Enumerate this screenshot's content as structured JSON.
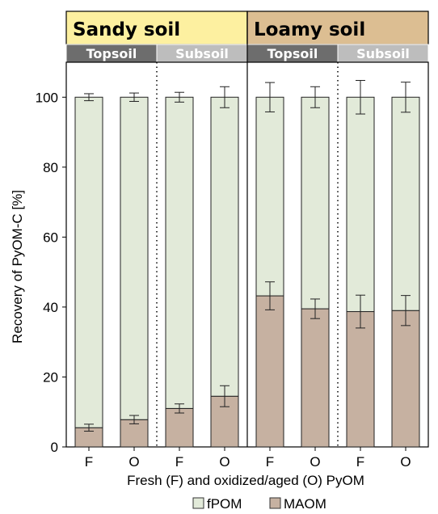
{
  "chart_data": {
    "type": "bar",
    "stacked": true,
    "groups": [
      {
        "soil": "Sandy soil",
        "color": "#fdf0a0",
        "depths": [
          {
            "label": "Topsoil",
            "color": "#6d6d6d",
            "bars": [
              {
                "x": "F",
                "MAOM": 5.5,
                "MAOM_err": 1.0,
                "total_err": 1.0
              },
              {
                "x": "O",
                "MAOM": 7.8,
                "MAOM_err": 1.2,
                "total_err": 1.2
              }
            ]
          },
          {
            "label": "Subsoil",
            "color": "#bdbdbd",
            "bars": [
              {
                "x": "F",
                "MAOM": 11.0,
                "MAOM_err": 1.3,
                "total_err": 1.4
              },
              {
                "x": "O",
                "MAOM": 14.5,
                "MAOM_err": 3.0,
                "total_err": 3.0
              }
            ]
          }
        ]
      },
      {
        "soil": "Loamy soil",
        "color": "#dcbe92",
        "depths": [
          {
            "label": "Topsoil",
            "color": "#6d6d6d",
            "bars": [
              {
                "x": "F",
                "MAOM": 43.2,
                "MAOM_err": 4.0,
                "total_err": 4.2
              },
              {
                "x": "O",
                "MAOM": 39.5,
                "MAOM_err": 2.8,
                "total_err": 3.0
              }
            ]
          },
          {
            "label": "Subsoil",
            "color": "#bdbdbd",
            "bars": [
              {
                "x": "F",
                "MAOM": 38.7,
                "MAOM_err": 4.7,
                "total_err": 4.8
              },
              {
                "x": "O",
                "MAOM": 39.0,
                "MAOM_err": 4.3,
                "total_err": 4.3
              }
            ]
          }
        ]
      }
    ],
    "series": [
      {
        "name": "fPOM",
        "color": "#e2ead9"
      },
      {
        "name": "MAOM",
        "color": "#c6b1a1"
      }
    ],
    "total": 100,
    "ylabel": "Recovery of PyOM-C [%]",
    "xlabel": "Fresh (F) and oxidized/aged (O) PyOM",
    "ylim": [
      0,
      110
    ],
    "yticks": [
      0,
      20,
      40,
      60,
      80,
      100
    ],
    "legend_position": "bottom-center",
    "grid": false
  }
}
